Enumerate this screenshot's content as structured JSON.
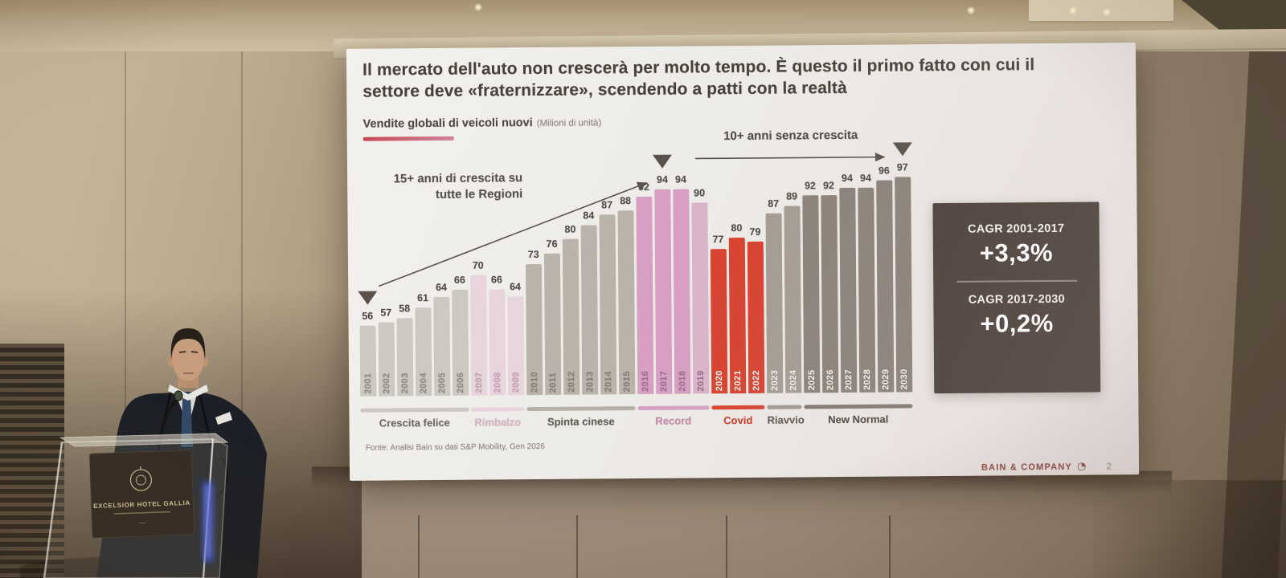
{
  "scene": {
    "podium_sign_title": "EXCELSIOR HOTEL GALLIA"
  },
  "slide": {
    "title": "Il mercato dell'auto non crescerà per molto tempo. È questo il primo fatto con cui il settore deve «fraternizzare», scendendo a patti con la realtà",
    "subtitle_bold": "Vendite globali di veicoli nuovi",
    "subtitle_unit": "(Milioni di unità)",
    "annotation_growth_line1": "15+ anni di crescita su",
    "annotation_growth_line2": "tutte le Regioni",
    "annotation_flat": "10+ anni senza crescita",
    "cagr": {
      "label_1": "CAGR 2001-2017",
      "value_1": "+3,3%",
      "label_2": "CAGR 2017-2030",
      "value_2": "+0,2%"
    },
    "source": "Fonte: Analisi Bain su dati S&P Mobility, Gen 2026",
    "brand": "BAIN & COMPANY",
    "page_number": "2"
  },
  "chart_data": {
    "type": "bar",
    "title": "Vendite globali di veicoli nuovi",
    "unit": "Milioni di unità",
    "categories": [
      "2001",
      "2002",
      "2003",
      "2004",
      "2005",
      "2006",
      "2007",
      "2008",
      "2009",
      "2010",
      "2011",
      "2012",
      "2013",
      "2014",
      "2015",
      "2016",
      "2017",
      "2018",
      "2019",
      "2020",
      "2021",
      "2022",
      "2023",
      "2024",
      "2025",
      "2026",
      "2027",
      "2028",
      "2029",
      "2030"
    ],
    "values": [
      56,
      57,
      58,
      61,
      64,
      66,
      70,
      66,
      64,
      73,
      76,
      80,
      84,
      87,
      88,
      92,
      94,
      94,
      90,
      77,
      80,
      79,
      87,
      89,
      92,
      92,
      94,
      94,
      96,
      97
    ],
    "value_labels_shown": true,
    "axis_hidden": true,
    "marker_years": [
      "2001",
      "2017",
      "2030"
    ],
    "marker_color": "#5b524c",
    "white_label_from_year": 2020,
    "bar_color_overrides": {
      "2019": "#dab4cb"
    },
    "phases": [
      {
        "label": "Crescita felice",
        "from": "2001",
        "to": "2006",
        "bar_color": "#cdc8c1",
        "strip_color": "#ccc7c1",
        "label_color": "#6e6862",
        "tick_color": "#8f8983"
      },
      {
        "label": "Rimbalzo",
        "from": "2007",
        "to": "2009",
        "bar_color": "#e8d4dd",
        "strip_color": "#e7d3dc",
        "label_color": "#d4b3c2",
        "tick_color": "#c3a2b3"
      },
      {
        "label": "Spinta cinese",
        "from": "2010",
        "to": "2015",
        "bar_color": "#bab3aa",
        "strip_color": "#b7b0a7",
        "label_color": "#5e5850",
        "tick_color": "#847e76"
      },
      {
        "label": "Record",
        "from": "2016",
        "to": "2019",
        "bar_color": "#d7a0c3",
        "strip_color": "#d5a2c4",
        "label_color": "#c287a8",
        "tick_color": "#9c6f8d"
      },
      {
        "label": "Covid",
        "from": "2020",
        "to": "2022",
        "bar_color": "#d74331",
        "strip_color": "#d64530",
        "label_color": "#ce3a28",
        "tick_color": "#ffffff"
      },
      {
        "label": "Riavvio",
        "from": "2023",
        "to": "2024",
        "bar_color": "#a59c93",
        "strip_color": "#a29990",
        "label_color": "#5e5850",
        "tick_color": "#ffffff"
      },
      {
        "label": "New Normal",
        "from": "2025",
        "to": "2030",
        "bar_color": "#8b8279",
        "strip_color": "#837a72",
        "label_color": "#4d4842",
        "tick_color": "#ffffff"
      }
    ]
  }
}
